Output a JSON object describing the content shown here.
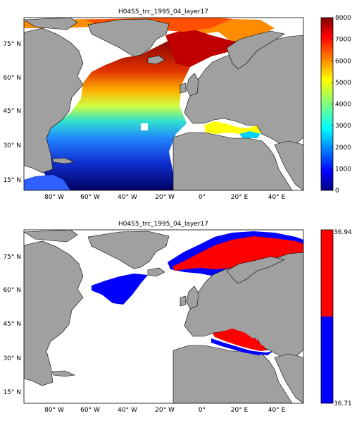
{
  "figure": {
    "panels": [
      {
        "title": "H04S5_trc_1995_04_layer17",
        "lat_labels": [
          "75° N",
          "60° N",
          "45° N",
          "30° N",
          "15° N"
        ],
        "lon_labels": [
          "80° W",
          "60° W",
          "40° W",
          "20° W",
          "0°",
          "20° E",
          "40° E"
        ],
        "colorbar": {
          "type": "continuous jet",
          "range": [
            0,
            8000
          ],
          "tick_labels": [
            "0",
            "1000",
            "2000",
            "3000",
            "4000",
            "5000",
            "6000",
            "7000",
            "8000"
          ]
        }
      },
      {
        "title": "H04S5_trc_1995_04_layer17",
        "lat_labels": [
          "75° N",
          "60° N",
          "45° N",
          "30° N",
          "15° N"
        ],
        "lon_labels": [
          "80° W",
          "60° W",
          "40° W",
          "20° W",
          "0°",
          "20° E",
          "40° E"
        ],
        "colorbar": {
          "type": "two-class",
          "top_label": "36.946",
          "bottom_label": "36.712",
          "colors": [
            "#ff0000",
            "#0000ff"
          ]
        }
      }
    ],
    "colors": {
      "land": "#a0a0a0",
      "ocean_nodata": "#ffffff",
      "class_high": "#ff0000",
      "class_low": "#0000ff"
    }
  }
}
